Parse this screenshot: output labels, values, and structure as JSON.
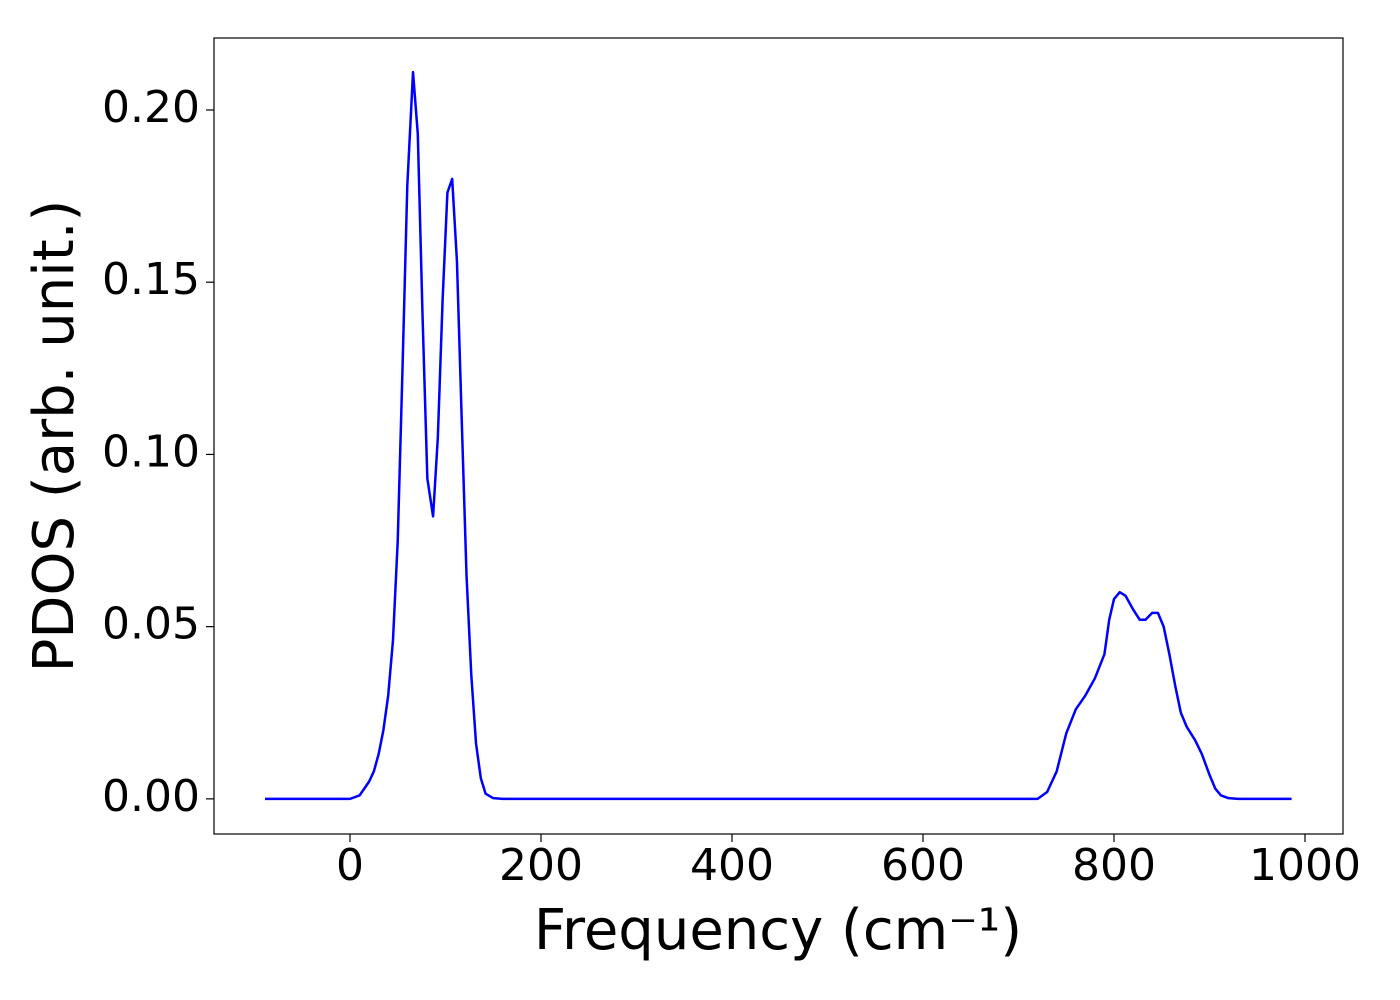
{
  "chart_data": {
    "type": "line",
    "xlabel": "Frequency (cm⁻¹)",
    "ylabel": "PDOS (arb. unit.)",
    "x": [
      -89,
      0,
      10,
      20,
      25,
      30,
      35,
      40,
      45,
      50,
      55,
      60,
      66,
      71,
      76,
      81,
      87,
      92,
      97,
      102,
      107,
      112,
      117,
      122,
      127,
      132,
      137,
      142,
      150,
      160,
      720,
      730,
      740,
      750,
      760,
      770,
      780,
      790,
      795,
      800,
      806,
      812,
      820,
      827,
      833,
      840,
      846,
      852,
      858,
      864,
      870,
      876,
      885,
      892,
      900,
      906,
      912,
      920,
      930,
      986
    ],
    "series": [
      {
        "name": "PDOS",
        "color": "#0000ff",
        "values": [
          0,
          0,
          0.001,
          0.005,
          0.008,
          0.013,
          0.02,
          0.03,
          0.046,
          0.075,
          0.125,
          0.178,
          0.211,
          0.193,
          0.14,
          0.093,
          0.082,
          0.105,
          0.145,
          0.176,
          0.18,
          0.156,
          0.11,
          0.065,
          0.036,
          0.016,
          0.006,
          0.0015,
          0.0002,
          0,
          0,
          0.002,
          0.008,
          0.019,
          0.026,
          0.03,
          0.035,
          0.042,
          0.052,
          0.058,
          0.06,
          0.059,
          0.055,
          0.052,
          0.052,
          0.054,
          0.054,
          0.05,
          0.042,
          0.033,
          0.025,
          0.021,
          0.017,
          0.013,
          0.007,
          0.003,
          0.001,
          0.0002,
          0,
          0
        ]
      }
    ],
    "xlim": [
      -142.4,
      1039.8
    ],
    "ylim": [
      -0.0102,
      0.2209
    ],
    "xticks": [
      0,
      200,
      400,
      600,
      800,
      1000
    ],
    "yticks": [
      {
        "value": 0,
        "label": "0.00"
      },
      {
        "value": 0.05,
        "label": "0.05"
      },
      {
        "value": 0.1,
        "label": "0.10"
      },
      {
        "value": 0.15,
        "label": "0.15"
      },
      {
        "value": 0.2,
        "label": "0.20"
      }
    ],
    "grid": false
  }
}
